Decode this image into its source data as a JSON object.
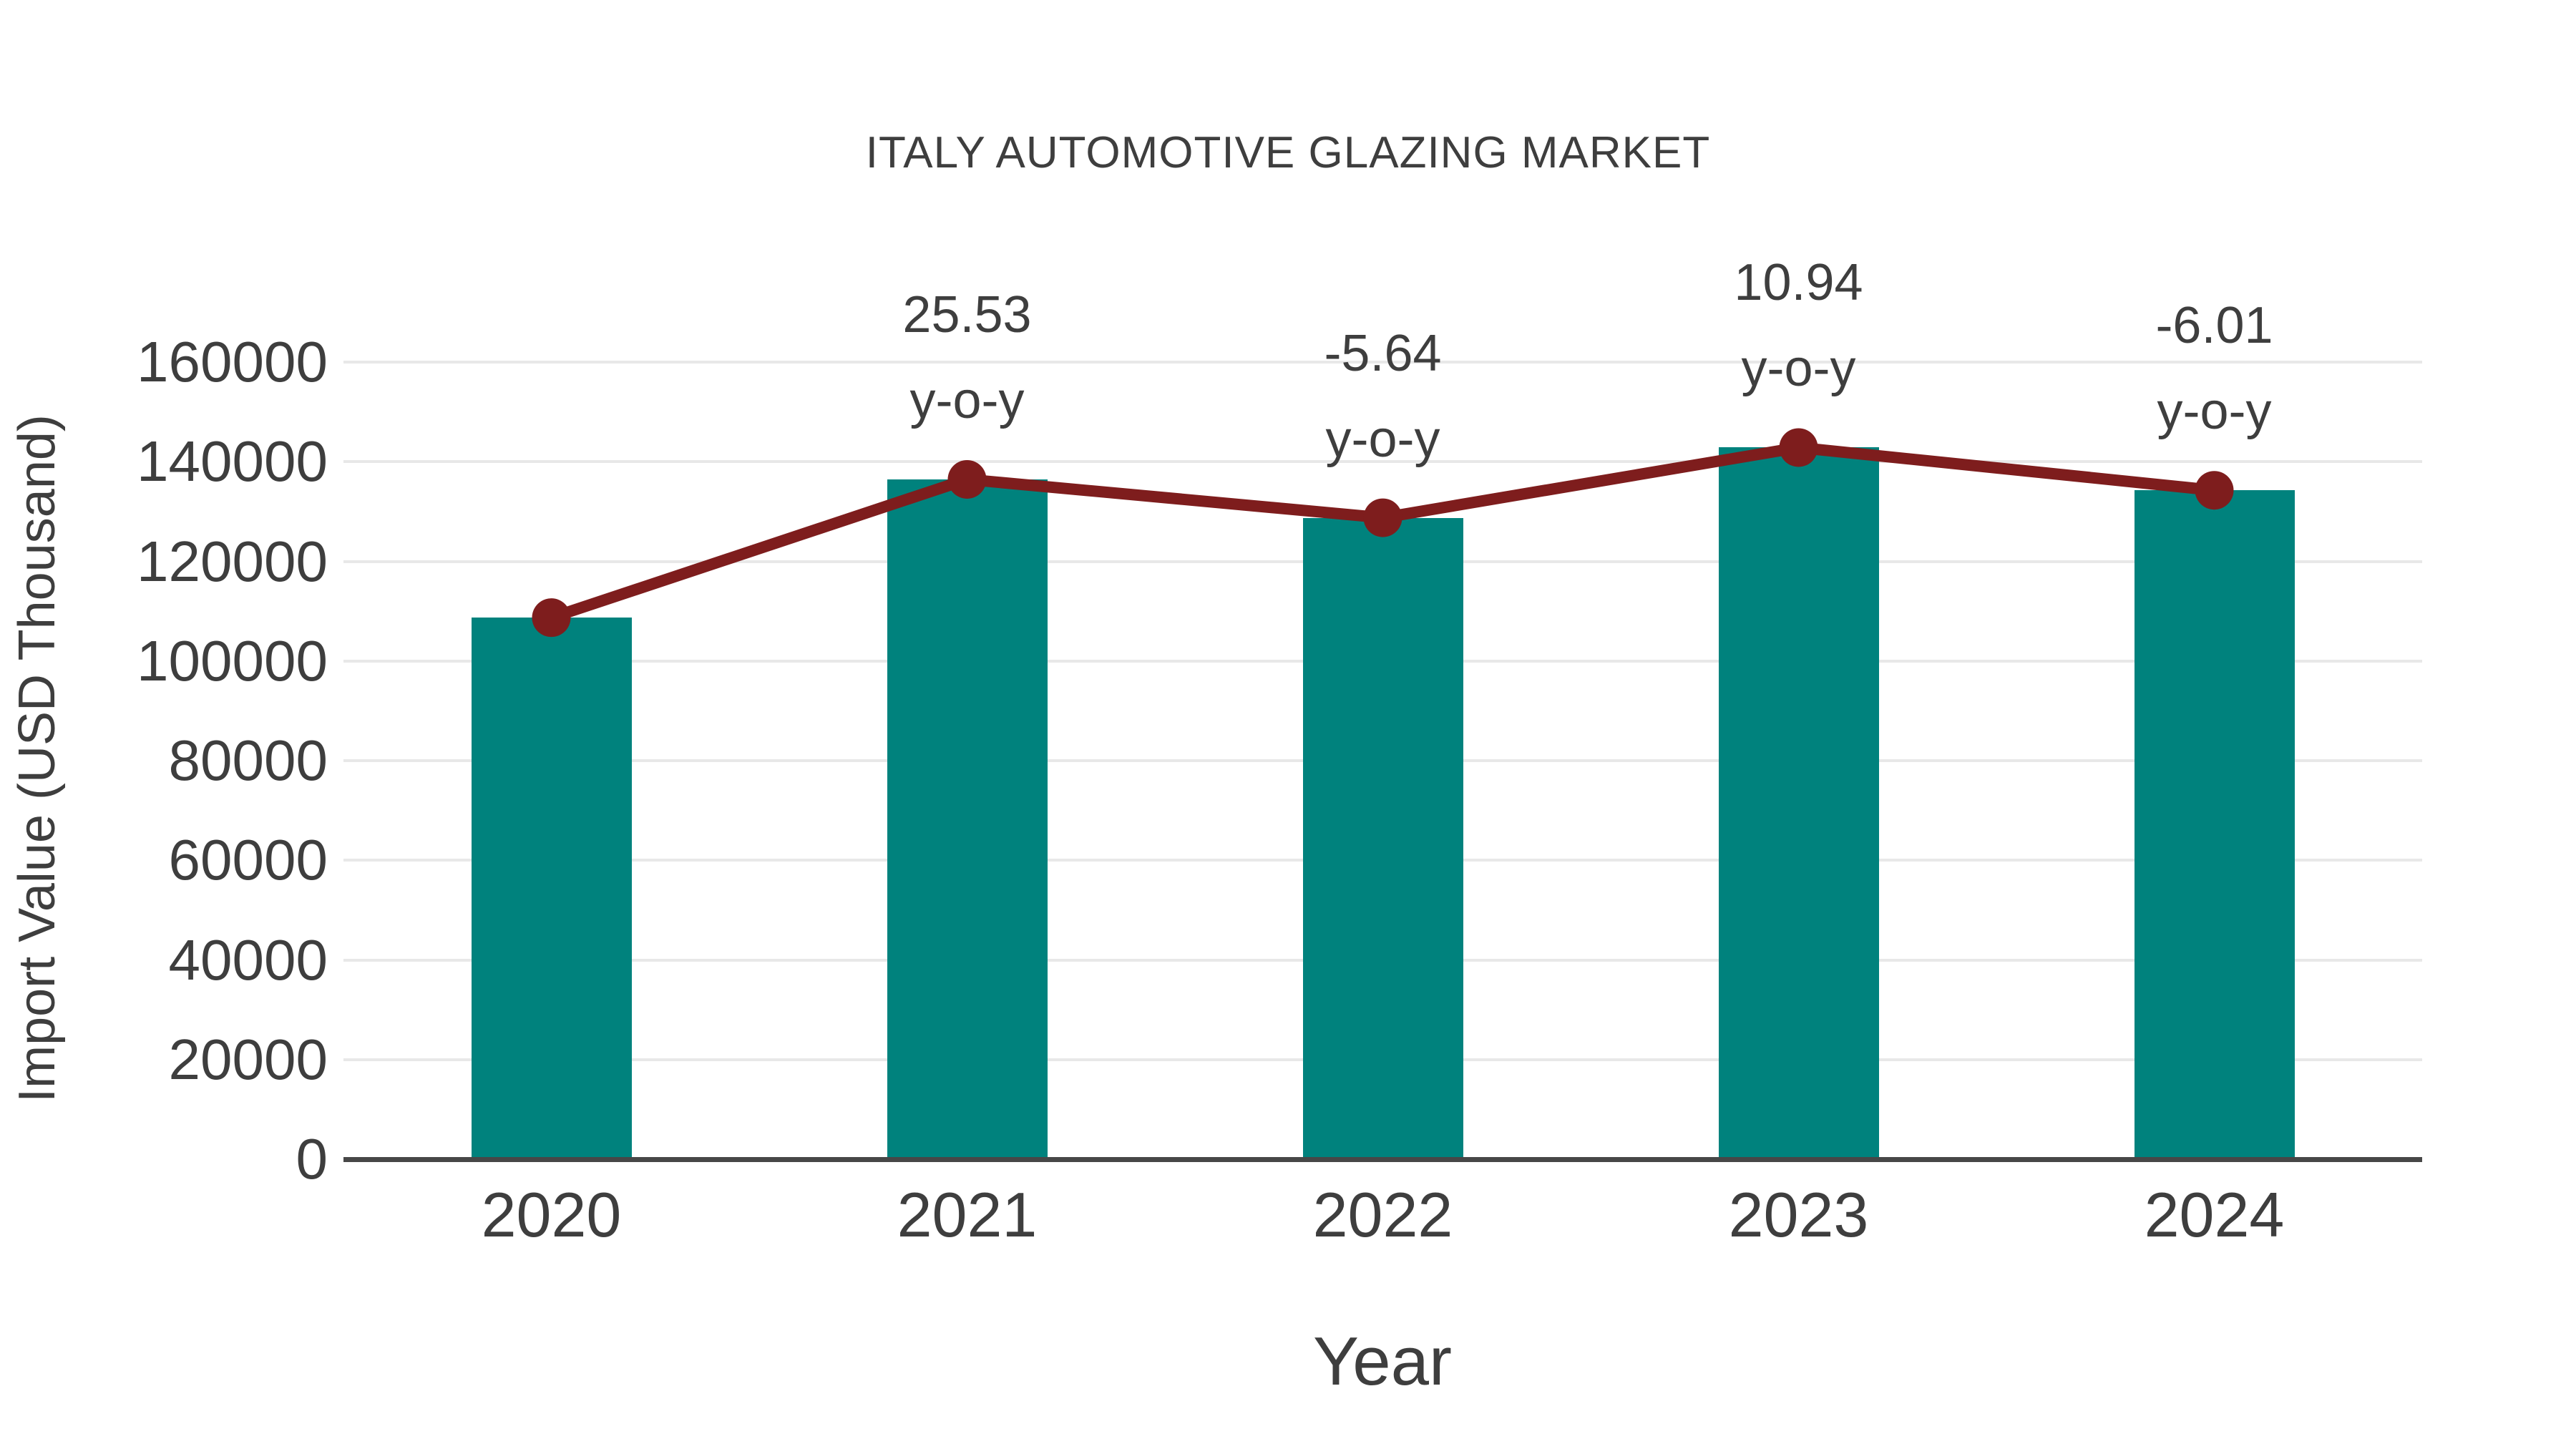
{
  "chart_data": {
    "type": "bar",
    "title": "ITALY AUTOMOTIVE GLAZING MARKET",
    "xlabel": "Year",
    "ylabel": "Import Value (USD Thousand)",
    "categories": [
      "2020",
      "2021",
      "2022",
      "2023",
      "2024"
    ],
    "series": [
      {
        "name": "Import Value bars",
        "type": "bar",
        "color": "#00827D",
        "values": [
          108700,
          136450,
          128750,
          142840,
          134260
        ]
      },
      {
        "name": "Import Value trend line",
        "type": "line",
        "color": "#7E1D1D",
        "values": [
          108700,
          136450,
          128750,
          142840,
          134260
        ]
      }
    ],
    "annotations": [
      {
        "category_index": 1,
        "value": "25.53",
        "label": "y-o-y"
      },
      {
        "category_index": 2,
        "value": "-5.64",
        "label": "y-o-y"
      },
      {
        "category_index": 3,
        "value": "10.94",
        "label": "y-o-y"
      },
      {
        "category_index": 4,
        "value": "-6.01",
        "label": "y-o-y"
      }
    ],
    "ylim": [
      0,
      160000
    ],
    "yticks": [
      0,
      20000,
      40000,
      60000,
      80000,
      100000,
      120000,
      140000,
      160000
    ],
    "grid": true,
    "legend": false
  },
  "colors": {
    "bar": "#00827D",
    "line": "#7E1D1D",
    "marker": "#7E1D1D",
    "text": "#3E3E3E",
    "gridline": "#E8E8E8",
    "axis": "#474747",
    "background": "#FFFFFF"
  }
}
